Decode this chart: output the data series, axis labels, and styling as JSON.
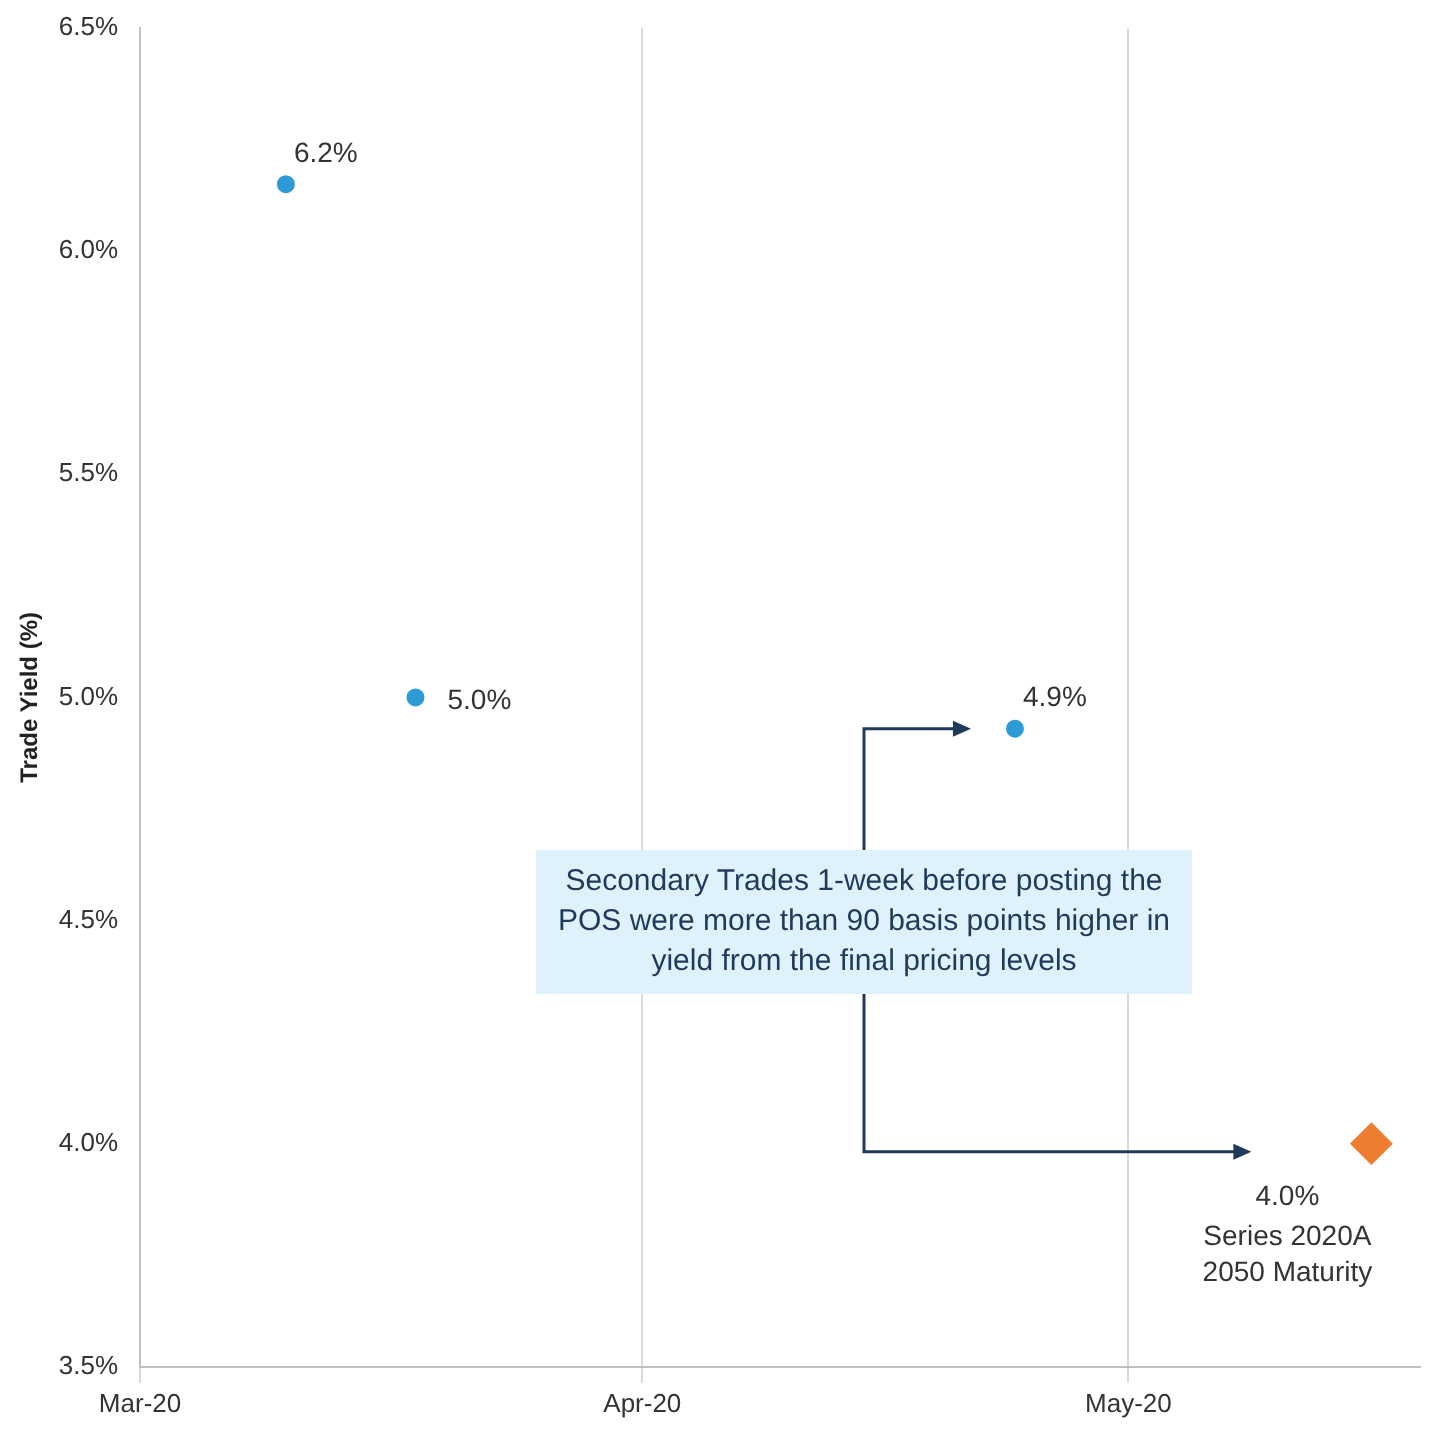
{
  "chart_data": {
    "type": "scatter",
    "ylabel": "Trade Yield (%)",
    "series": [
      {
        "color": "#2e9bd6",
        "x": [
          "2020-03-10",
          "2020-03-18",
          "2020-04-24"
        ],
        "values": [
          6.15,
          5.0,
          4.93
        ],
        "value_labels": [
          "6.2%",
          "5.0%",
          "4.9%"
        ]
      },
      {
        "color": "#ed7d31",
        "marker": "diamond",
        "x": [
          "2020-05-16"
        ],
        "values": [
          4.0
        ],
        "value_labels": [
          "4.0%"
        ]
      }
    ],
    "xlim": [
      "2020-03-01",
      "2020-05-19"
    ],
    "xticks": [
      {
        "value": "2020-03-01",
        "label": "Mar-20"
      },
      {
        "value": "2020-04-01",
        "label": "Apr-20"
      },
      {
        "value": "2020-05-01",
        "label": "May-20"
      }
    ],
    "ylim": [
      3.5,
      6.5
    ],
    "yticks": [
      {
        "value": 3.5,
        "label": "3.5%"
      },
      {
        "value": 4.0,
        "label": "4.0%"
      },
      {
        "value": 4.5,
        "label": "4.5%"
      },
      {
        "value": 5.0,
        "label": "5.0%"
      },
      {
        "value": 5.5,
        "label": "5.5%"
      },
      {
        "value": 6.0,
        "label": "6.0%"
      },
      {
        "value": 6.5,
        "label": "6.5%"
      }
    ],
    "grid": "x",
    "marker": "circle",
    "annotations": [
      "Secondary Trades 1-week before posting the POS were more than 90 basis points higher in yield from the final pricing levels",
      {
        "text": "Series 2020A\n2050 Maturity",
        "x": "2020-05-16",
        "y": 4.0
      }
    ]
  }
}
